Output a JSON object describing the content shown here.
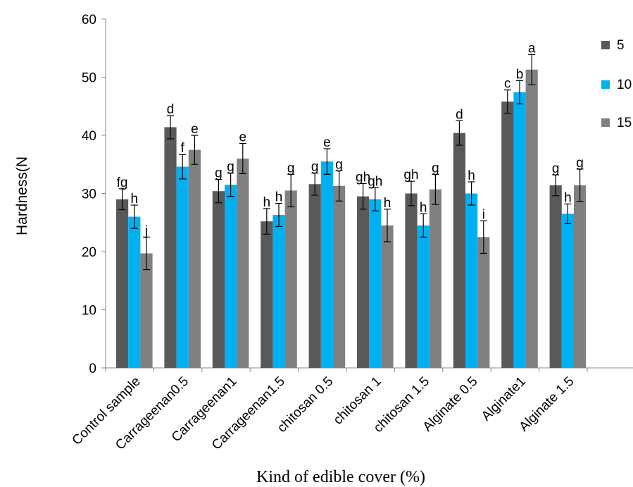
{
  "chart_data": {
    "type": "bar",
    "title": "",
    "xlabel": "Kind of edible cover (%)",
    "ylabel": "Hardness(N",
    "ylim": [
      0,
      60
    ],
    "yticks": [
      0,
      10,
      20,
      30,
      40,
      50,
      60
    ],
    "grid": false,
    "legend_position": "right",
    "categories": [
      "Control sample",
      "Carrageenan0.5",
      "Carrageenan1",
      "Carrageenan1.5",
      "chitosan  0.5",
      "chitosan  1",
      "chitosan  1.5",
      "Alginate  0.5",
      "Alginate1",
      "Alginate  1.5"
    ],
    "series": [
      {
        "name": "5",
        "color": "#595959",
        "values": [
          29.0,
          41.4,
          30.4,
          25.2,
          31.6,
          29.5,
          30.0,
          40.4,
          45.8,
          31.4
        ],
        "errors": [
          1.8,
          2.0,
          2.0,
          2.2,
          1.9,
          2.2,
          2.1,
          2.1,
          2.0,
          1.8
        ],
        "letters": [
          "fg",
          "d",
          "g",
          "h",
          "g",
          "gh",
          "gh",
          "d",
          "c",
          "g"
        ]
      },
      {
        "name": "10",
        "color": "#00b0f0",
        "values": [
          26.0,
          34.6,
          31.5,
          26.3,
          35.5,
          29.0,
          24.5,
          30.0,
          47.4,
          26.5
        ],
        "errors": [
          2.0,
          2.1,
          2.0,
          2.0,
          2.2,
          2.0,
          2.0,
          2.0,
          2.0,
          1.7
        ],
        "letters": [
          "h",
          "f",
          "g",
          "h",
          "e",
          "gh",
          "h",
          "h",
          "b",
          "h"
        ]
      },
      {
        "name": "15",
        "color": "#808080",
        "values": [
          19.7,
          37.5,
          36.0,
          30.5,
          31.3,
          24.5,
          30.7,
          22.5,
          51.3,
          31.4
        ],
        "errors": [
          2.8,
          2.5,
          2.6,
          2.8,
          2.6,
          2.8,
          2.6,
          2.8,
          2.6,
          2.8
        ],
        "letters": [
          "j",
          "e",
          "e",
          "g",
          "g",
          "h",
          "g",
          "i",
          "a",
          "g"
        ]
      }
    ]
  }
}
